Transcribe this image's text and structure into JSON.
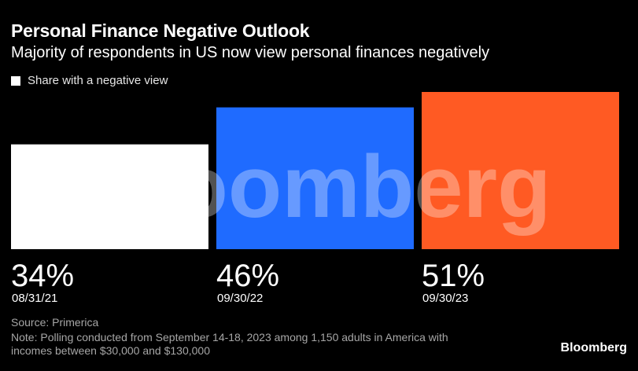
{
  "header": {
    "title": "Personal Finance Negative Outlook",
    "subtitle": "Majority of respondents in US now view personal finances negatively"
  },
  "legend": {
    "label": "Share with a negative view",
    "swatch_color": "#ffffff"
  },
  "watermark": "Bloomberg",
  "chart_data": {
    "type": "bar",
    "categories": [
      "08/31/21",
      "09/30/22",
      "09/30/23"
    ],
    "series": [
      {
        "name": "Share with a negative view",
        "values": [
          34,
          46,
          51
        ],
        "colors": [
          "#ffffff",
          "#1f6bff",
          "#ff5a23"
        ]
      }
    ],
    "value_labels": [
      "34%",
      "46%",
      "51%"
    ],
    "ylim": [
      0,
      51
    ],
    "grid": false,
    "legend_position": "top-left",
    "title": "Personal Finance Negative Outlook",
    "subtitle": "Majority of respondents in US now view personal finances negatively"
  },
  "footer": {
    "source": "Source: Primerica",
    "note": "Note: Polling conducted from September 14-18, 2023 among 1,150 adults in America with incomes between $30,000 and $130,000",
    "brand": "Bloomberg"
  }
}
